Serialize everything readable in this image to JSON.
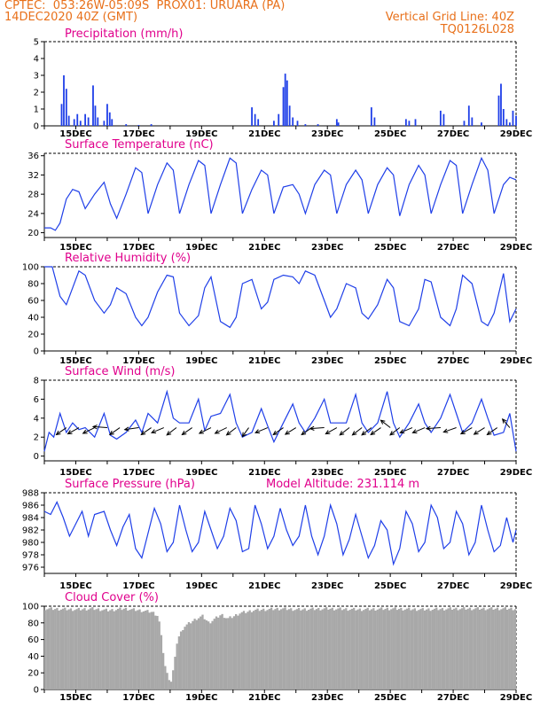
{
  "header": {
    "line1_left": "CPTEC:  053:26W-05:09S  PROX01: URUARA (PA)",
    "line2_left": "14DEC2020 40Z (GMT)",
    "line2_right": "Vertical Grid Line: 40Z",
    "line3_right": "TQ0126L028"
  },
  "colors": {
    "header": "#e8701a",
    "titles": "#e0008c",
    "series": "#1f3fe8",
    "cloud": "#a8a8a8",
    "wind_arrows": "#000000"
  },
  "chart_data": [
    {
      "type": "bar",
      "title": "Precipitation (mm/h)",
      "x_tick_labels": [
        "15DEC",
        "17DEC",
        "19DEC",
        "21DEC",
        "23DEC",
        "25DEC",
        "27DEC",
        "29DEC"
      ],
      "x_days": [
        1,
        3,
        5,
        7,
        9,
        11,
        13,
        15
      ],
      "xlim": [
        0,
        15
      ],
      "ylim": [
        0,
        5
      ],
      "y_ticks": [
        0,
        1,
        2,
        3,
        4,
        5
      ],
      "bars": [
        {
          "x": 0.55,
          "v": 1.3
        },
        {
          "x": 0.62,
          "v": 3.0
        },
        {
          "x": 0.7,
          "v": 2.2
        },
        {
          "x": 0.78,
          "v": 0.6
        },
        {
          "x": 0.95,
          "v": 0.4
        },
        {
          "x": 1.05,
          "v": 0.7
        },
        {
          "x": 1.15,
          "v": 0.3
        },
        {
          "x": 1.3,
          "v": 0.7
        },
        {
          "x": 1.4,
          "v": 0.5
        },
        {
          "x": 1.55,
          "v": 2.4
        },
        {
          "x": 1.62,
          "v": 1.2
        },
        {
          "x": 1.7,
          "v": 0.5
        },
        {
          "x": 1.9,
          "v": 0.3
        },
        {
          "x": 2.0,
          "v": 1.3
        },
        {
          "x": 2.08,
          "v": 0.8
        },
        {
          "x": 2.15,
          "v": 0.4
        },
        {
          "x": 2.6,
          "v": 0.1
        },
        {
          "x": 3.0,
          "v": 0.05
        },
        {
          "x": 3.4,
          "v": 0.1
        },
        {
          "x": 6.6,
          "v": 1.1
        },
        {
          "x": 6.7,
          "v": 0.7
        },
        {
          "x": 6.8,
          "v": 0.4
        },
        {
          "x": 7.3,
          "v": 0.3
        },
        {
          "x": 7.45,
          "v": 0.7
        },
        {
          "x": 7.6,
          "v": 2.3
        },
        {
          "x": 7.66,
          "v": 3.1
        },
        {
          "x": 7.72,
          "v": 2.7
        },
        {
          "x": 7.8,
          "v": 1.2
        },
        {
          "x": 7.9,
          "v": 0.5
        },
        {
          "x": 8.05,
          "v": 0.3
        },
        {
          "x": 8.3,
          "v": 0.1
        },
        {
          "x": 8.7,
          "v": 0.1
        },
        {
          "x": 9.3,
          "v": 0.4
        },
        {
          "x": 9.35,
          "v": 0.2
        },
        {
          "x": 10.4,
          "v": 1.1
        },
        {
          "x": 10.5,
          "v": 0.5
        },
        {
          "x": 11.5,
          "v": 0.4
        },
        {
          "x": 11.6,
          "v": 0.3
        },
        {
          "x": 11.8,
          "v": 0.4
        },
        {
          "x": 12.6,
          "v": 0.9
        },
        {
          "x": 12.7,
          "v": 0.7
        },
        {
          "x": 13.35,
          "v": 0.3
        },
        {
          "x": 13.5,
          "v": 1.2
        },
        {
          "x": 13.6,
          "v": 0.5
        },
        {
          "x": 13.9,
          "v": 0.2
        },
        {
          "x": 14.45,
          "v": 1.8
        },
        {
          "x": 14.52,
          "v": 2.5
        },
        {
          "x": 14.6,
          "v": 1.0
        },
        {
          "x": 14.7,
          "v": 0.4
        },
        {
          "x": 14.8,
          "v": 0.2
        },
        {
          "x": 14.9,
          "v": 0.9
        },
        {
          "x": 15.0,
          "v": 0.6
        }
      ]
    },
    {
      "type": "line",
      "title": "Surface Temperature (nC)",
      "x_tick_labels": [
        "15DEC",
        "17DEC",
        "19DEC",
        "21DEC",
        "23DEC",
        "25DEC",
        "27DEC",
        "29DEC"
      ],
      "x_days": [
        1,
        3,
        5,
        7,
        9,
        11,
        13,
        15
      ],
      "xlim": [
        0,
        15
      ],
      "ylim": [
        19,
        36.5
      ],
      "y_ticks": [
        20,
        24,
        28,
        32,
        36
      ],
      "x": [
        0,
        0.2,
        0.35,
        0.5,
        0.7,
        0.9,
        1.1,
        1.3,
        1.6,
        1.9,
        2.1,
        2.3,
        2.6,
        2.9,
        3.1,
        3.3,
        3.6,
        3.9,
        4.1,
        4.3,
        4.6,
        4.9,
        5.1,
        5.3,
        5.6,
        5.9,
        6.1,
        6.3,
        6.6,
        6.9,
        7.1,
        7.3,
        7.6,
        7.9,
        8.1,
        8.3,
        8.6,
        8.9,
        9.1,
        9.3,
        9.6,
        9.9,
        10.1,
        10.3,
        10.6,
        10.9,
        11.1,
        11.3,
        11.6,
        11.9,
        12.1,
        12.3,
        12.6,
        12.9,
        13.1,
        13.3,
        13.6,
        13.9,
        14.1,
        14.3,
        14.6,
        14.8,
        15
      ],
      "y": [
        21,
        21,
        20.5,
        22,
        27,
        29,
        28.5,
        25,
        28,
        30.5,
        26,
        23,
        28,
        33.5,
        32.5,
        24,
        30,
        34.5,
        33,
        24,
        30,
        35,
        34,
        24,
        30,
        35.5,
        34.5,
        24,
        29,
        33,
        32,
        24,
        29.5,
        30,
        28,
        24,
        30,
        33,
        32,
        24,
        30,
        33,
        31,
        24,
        30,
        33.5,
        32,
        23.5,
        30,
        34,
        32,
        24,
        30,
        35,
        34,
        24,
        30,
        35.5,
        33,
        24,
        30,
        31.5,
        31
      ]
    },
    {
      "type": "line",
      "title": "Relative Humidity (%)",
      "x_tick_labels": [
        "15DEC",
        "17DEC",
        "19DEC",
        "21DEC",
        "23DEC",
        "25DEC",
        "27DEC",
        "29DEC"
      ],
      "x_days": [
        1,
        3,
        5,
        7,
        9,
        11,
        13,
        15
      ],
      "xlim": [
        0,
        15
      ],
      "ylim": [
        0,
        100
      ],
      "y_ticks": [
        0,
        20,
        40,
        60,
        80,
        100
      ],
      "x": [
        0,
        0.25,
        0.5,
        0.7,
        0.9,
        1.1,
        1.3,
        1.6,
        1.9,
        2.1,
        2.3,
        2.6,
        2.9,
        3.1,
        3.3,
        3.6,
        3.9,
        4.1,
        4.3,
        4.6,
        4.9,
        5.1,
        5.3,
        5.6,
        5.9,
        6.1,
        6.3,
        6.6,
        6.9,
        7.1,
        7.3,
        7.6,
        7.9,
        8.1,
        8.3,
        8.6,
        8.9,
        9.1,
        9.3,
        9.6,
        9.9,
        10.1,
        10.3,
        10.6,
        10.9,
        11.1,
        11.3,
        11.6,
        11.9,
        12.1,
        12.3,
        12.6,
        12.9,
        13.1,
        13.3,
        13.6,
        13.9,
        14.1,
        14.3,
        14.6,
        14.8,
        15
      ],
      "y": [
        100,
        100,
        65,
        55,
        75,
        95,
        90,
        60,
        45,
        55,
        75,
        68,
        40,
        30,
        40,
        70,
        90,
        88,
        45,
        30,
        42,
        75,
        88,
        35,
        28,
        40,
        80,
        85,
        50,
        58,
        85,
        90,
        88,
        80,
        95,
        90,
        60,
        40,
        50,
        80,
        75,
        45,
        38,
        55,
        85,
        75,
        35,
        30,
        50,
        85,
        82,
        40,
        30,
        50,
        90,
        80,
        35,
        30,
        45,
        92,
        35,
        50
      ]
    },
    {
      "type": "line",
      "title": "Surface Wind (m/s)",
      "x_tick_labels": [
        "15DEC",
        "17DEC",
        "19DEC",
        "21DEC",
        "23DEC",
        "25DEC",
        "27DEC",
        "29DEC"
      ],
      "x_days": [
        1,
        3,
        5,
        7,
        9,
        11,
        13,
        15
      ],
      "xlim": [
        0,
        15
      ],
      "ylim": [
        -0.5,
        8
      ],
      "y_ticks": [
        0,
        2,
        4,
        6,
        8
      ],
      "x": [
        0,
        0.15,
        0.3,
        0.5,
        0.7,
        0.9,
        1.1,
        1.3,
        1.6,
        1.9,
        2.1,
        2.3,
        2.6,
        2.9,
        3.1,
        3.3,
        3.6,
        3.9,
        4.1,
        4.3,
        4.6,
        4.9,
        5.1,
        5.3,
        5.6,
        5.9,
        6.1,
        6.3,
        6.6,
        6.9,
        7.1,
        7.3,
        7.6,
        7.9,
        8.1,
        8.3,
        8.6,
        8.9,
        9.1,
        9.3,
        9.6,
        9.9,
        10.1,
        10.3,
        10.6,
        10.9,
        11.1,
        11.3,
        11.6,
        11.9,
        12.1,
        12.3,
        12.6,
        12.9,
        13.1,
        13.3,
        13.6,
        13.9,
        14.1,
        14.3,
        14.6,
        14.8,
        15
      ],
      "y": [
        0.5,
        2.5,
        2,
        4.5,
        2.5,
        3.5,
        2.8,
        3,
        2,
        4.5,
        2.2,
        1.8,
        2.5,
        3.8,
        2.5,
        4.5,
        3.5,
        6.8,
        4,
        3.5,
        3.5,
        6,
        2.7,
        4.2,
        4.5,
        6.5,
        3.5,
        2,
        2.5,
        5,
        3.2,
        1.5,
        3.5,
        5.5,
        3.5,
        2.5,
        4,
        6,
        3.5,
        3.5,
        3.5,
        6.5,
        3.5,
        2.5,
        3.5,
        6.8,
        3.5,
        2,
        3.5,
        5.5,
        3.5,
        2.5,
        4,
        6.5,
        4.5,
        2.5,
        3.5,
        6,
        4,
        2.2,
        2.5,
        4.5,
        0.5
      ],
      "arrows": [
        {
          "x": 0.7,
          "u": -1.0,
          "v": -1.0
        },
        {
          "x": 1.1,
          "u": -1.0,
          "v": -0.8
        },
        {
          "x": 1.6,
          "u": -1.0,
          "v": -0.7
        },
        {
          "x": 2.0,
          "u": -1.0,
          "v": 0.1
        },
        {
          "x": 2.4,
          "u": -1.0,
          "v": -1.0
        },
        {
          "x": 3.0,
          "u": -1.0,
          "v": -0.2
        },
        {
          "x": 3.4,
          "u": -1.0,
          "v": -1.0
        },
        {
          "x": 3.8,
          "u": -1.0,
          "v": -0.6
        },
        {
          "x": 4.2,
          "u": -1.0,
          "v": -1.1
        },
        {
          "x": 4.7,
          "u": -1.0,
          "v": -1.0
        },
        {
          "x": 5.3,
          "u": -1.0,
          "v": -0.7
        },
        {
          "x": 5.8,
          "u": -1.0,
          "v": -0.7
        },
        {
          "x": 6.1,
          "u": -1.0,
          "v": -1.1
        },
        {
          "x": 6.5,
          "u": -0.5,
          "v": -1.0
        },
        {
          "x": 7.1,
          "u": -1.0,
          "v": -0.6
        },
        {
          "x": 7.6,
          "u": -1.0,
          "v": -1.0
        },
        {
          "x": 8.0,
          "u": -1.0,
          "v": -0.9
        },
        {
          "x": 8.5,
          "u": -1.0,
          "v": -1.0
        },
        {
          "x": 8.9,
          "u": -1.0,
          "v": -0.1
        },
        {
          "x": 9.3,
          "u": -1.0,
          "v": -0.8
        },
        {
          "x": 9.7,
          "u": -1.0,
          "v": -1.1
        },
        {
          "x": 10.1,
          "u": -1.0,
          "v": -1.1
        },
        {
          "x": 10.4,
          "u": -1.0,
          "v": -1.1
        },
        {
          "x": 10.7,
          "u": -1.0,
          "v": -1.0
        },
        {
          "x": 11.0,
          "u": -0.9,
          "v": 1.0
        },
        {
          "x": 11.3,
          "u": -1.0,
          "v": -1.1
        },
        {
          "x": 11.7,
          "u": -1.0,
          "v": -0.6
        },
        {
          "x": 12.1,
          "u": -1.0,
          "v": -0.6
        },
        {
          "x": 12.6,
          "u": -1.0,
          "v": -0.1
        },
        {
          "x": 13.1,
          "u": -1.0,
          "v": -0.5
        },
        {
          "x": 13.6,
          "u": -1.0,
          "v": -0.8
        },
        {
          "x": 14.0,
          "u": -1.0,
          "v": -0.9
        },
        {
          "x": 14.4,
          "u": -1.0,
          "v": -1.0
        },
        {
          "x": 14.8,
          "u": -0.6,
          "v": 1.0
        }
      ]
    },
    {
      "type": "line",
      "title": "Surface Pressure (hPa)",
      "annotation": "Model Altitude: 231.114 m",
      "x_tick_labels": [
        "15DEC",
        "17DEC",
        "19DEC",
        "21DEC",
        "23DEC",
        "25DEC",
        "27DEC",
        "29DEC"
      ],
      "x_days": [
        1,
        3,
        5,
        7,
        9,
        11,
        13,
        15
      ],
      "xlim": [
        0,
        15
      ],
      "ylim": [
        975,
        988
      ],
      "y_ticks": [
        976,
        978,
        980,
        982,
        984,
        986,
        988
      ],
      "x": [
        0,
        0.2,
        0.4,
        0.6,
        0.8,
        1.0,
        1.2,
        1.4,
        1.6,
        1.9,
        2.1,
        2.3,
        2.5,
        2.7,
        2.9,
        3.1,
        3.3,
        3.5,
        3.7,
        3.9,
        4.1,
        4.3,
        4.5,
        4.7,
        4.9,
        5.1,
        5.3,
        5.5,
        5.7,
        5.9,
        6.1,
        6.3,
        6.5,
        6.7,
        6.9,
        7.1,
        7.3,
        7.5,
        7.7,
        7.9,
        8.1,
        8.3,
        8.5,
        8.7,
        8.9,
        9.1,
        9.3,
        9.5,
        9.7,
        9.9,
        10.1,
        10.3,
        10.5,
        10.7,
        10.9,
        11.1,
        11.3,
        11.5,
        11.7,
        11.9,
        12.1,
        12.3,
        12.5,
        12.7,
        12.9,
        13.1,
        13.3,
        13.5,
        13.7,
        13.9,
        14.1,
        14.3,
        14.5,
        14.7,
        14.9,
        15
      ],
      "y": [
        985,
        984.5,
        986.5,
        984,
        981,
        983,
        985,
        981,
        984.5,
        985,
        982,
        979.5,
        982.5,
        984.5,
        979,
        977.5,
        981.5,
        985.5,
        983,
        978.5,
        980,
        986,
        982,
        978.5,
        980,
        985,
        982,
        979,
        981,
        985.5,
        983.5,
        978.5,
        979,
        986,
        983,
        979,
        981,
        985.5,
        982,
        979.5,
        981,
        986,
        981,
        978,
        981,
        986,
        983,
        978,
        980.5,
        984.5,
        981,
        977.5,
        979.5,
        983.5,
        982,
        976.5,
        979,
        985,
        983,
        978.5,
        980,
        986,
        984,
        979,
        980,
        985,
        983,
        978,
        980,
        986,
        982,
        978.5,
        979.5,
        984,
        980,
        982
      ]
    },
    {
      "type": "bar",
      "title": "Cloud Cover (%)",
      "x_tick_labels": [
        "15DEC",
        "17DEC",
        "19DEC",
        "21DEC",
        "23DEC",
        "25DEC",
        "27DEC",
        "29DEC"
      ],
      "x_days": [
        1,
        3,
        5,
        7,
        9,
        11,
        13,
        15
      ],
      "xlim": [
        0,
        15
      ],
      "ylim": [
        0,
        100
      ],
      "y_ticks": [
        0,
        20,
        40,
        60,
        80,
        100
      ],
      "profile": [
        [
          0,
          97
        ],
        [
          1,
          96
        ],
        [
          1.5,
          97
        ],
        [
          2,
          95
        ],
        [
          2.5,
          97
        ],
        [
          3,
          95
        ],
        [
          3.4,
          93
        ],
        [
          3.6,
          88
        ],
        [
          3.7,
          60
        ],
        [
          3.8,
          30
        ],
        [
          3.9,
          15
        ],
        [
          4.0,
          10
        ],
        [
          4.1,
          30
        ],
        [
          4.2,
          60
        ],
        [
          4.4,
          75
        ],
        [
          4.6,
          80
        ],
        [
          4.8,
          85
        ],
        [
          5.0,
          88
        ],
        [
          5.2,
          80
        ],
        [
          5.4,
          85
        ],
        [
          5.6,
          90
        ],
        [
          5.8,
          85
        ],
        [
          6.0,
          88
        ],
        [
          6.2,
          92
        ],
        [
          6.4,
          93
        ],
        [
          6.6,
          95
        ],
        [
          7.0,
          96
        ],
        [
          7.5,
          97
        ],
        [
          8,
          96
        ],
        [
          9,
          97
        ],
        [
          10,
          96
        ],
        [
          11,
          97
        ],
        [
          12,
          96
        ],
        [
          13,
          97
        ],
        [
          14,
          97
        ],
        [
          15,
          97
        ]
      ]
    }
  ]
}
